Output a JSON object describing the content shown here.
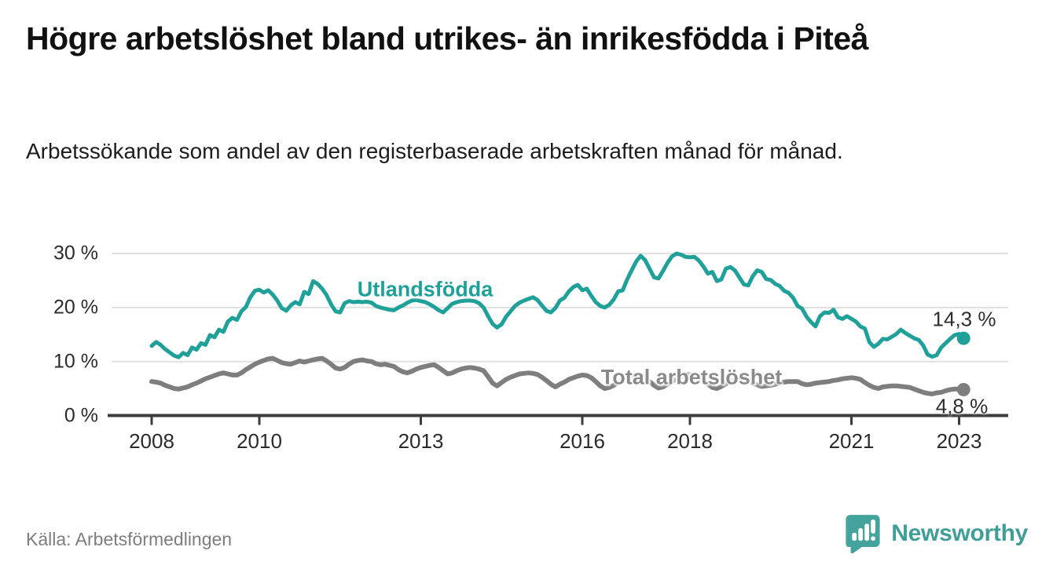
{
  "header": {
    "title": "Högre arbetslöshet bland utrikes- än inrikesfödda i Piteå",
    "subtitle": "Arbetssökande som andel av den registerbaserade arbetskraften månad för månad."
  },
  "chart_data": {
    "type": "line",
    "title": "Högre arbetslöshet bland utrikes- än inrikesfödda i Piteå",
    "subtitle": "Arbetssökande som andel av den registerbaserade arbetskraften månad för månad.",
    "unit": "%",
    "grid": "horizontal",
    "legend": "inline-labels",
    "x_axis": {
      "range_years": [
        2007.3,
        2023.9
      ],
      "ticks": [
        2008,
        2010,
        2013,
        2016,
        2018,
        2021,
        2023
      ],
      "labels": [
        "2008",
        "2010",
        "2013",
        "2016",
        "2018",
        "2021",
        "2023"
      ]
    },
    "y_axis": {
      "range": [
        0,
        30
      ],
      "ticks": [
        0,
        10,
        20,
        30
      ],
      "labels": [
        "0 %",
        "10 %",
        "20 %",
        "30 %"
      ]
    },
    "series": [
      {
        "name": "Utlandsfödda",
        "color": "#1fa098",
        "end_label": "14,3 %",
        "end_value": 14.3,
        "start_year": 2008,
        "step_months": 1,
        "values": [
          12.9,
          13.6,
          13.1,
          12.3,
          11.7,
          11.1,
          10.8,
          11.6,
          11.2,
          12.6,
          12.2,
          13.4,
          13.1,
          14.9,
          14.5,
          15.9,
          15.5,
          17.4,
          18.1,
          17.7,
          19.3,
          20.1,
          21.9,
          23.1,
          23.3,
          22.8,
          23.2,
          22.4,
          21.3,
          19.9,
          19.4,
          20.4,
          21.0,
          20.6,
          22.9,
          22.5,
          24.9,
          24.4,
          23.5,
          22.3,
          20.6,
          19.3,
          19.1,
          20.8,
          21.2,
          21.0,
          21.1,
          21.0,
          21.1,
          20.9,
          20.3,
          20.0,
          19.8,
          19.6,
          19.5,
          20.0,
          20.4,
          20.9,
          21.3,
          21.4,
          21.2,
          21.0,
          20.6,
          20.1,
          19.5,
          19.1,
          19.9,
          20.7,
          21.0,
          21.2,
          21.3,
          21.3,
          21.2,
          20.8,
          20.0,
          18.4,
          17.0,
          16.3,
          16.9,
          18.3,
          19.3,
          20.3,
          20.9,
          21.3,
          21.6,
          21.9,
          21.4,
          20.4,
          19.4,
          19.1,
          19.9,
          21.3,
          21.8,
          23.0,
          23.8,
          24.2,
          23.2,
          23.5,
          22.2,
          21.0,
          20.3,
          20.0,
          20.5,
          21.5,
          23.0,
          23.2,
          25.2,
          26.9,
          28.5,
          29.6,
          28.8,
          27.2,
          25.6,
          25.4,
          26.8,
          28.3,
          29.5,
          30.0,
          29.8,
          29.4,
          29.3,
          29.4,
          28.7,
          27.6,
          26.3,
          26.6,
          24.9,
          25.2,
          27.2,
          27.5,
          26.9,
          25.6,
          24.3,
          24.1,
          25.8,
          26.9,
          26.6,
          25.3,
          25.1,
          24.4,
          24.0,
          23.1,
          22.7,
          21.8,
          20.3,
          19.8,
          18.3,
          17.3,
          16.5,
          18.4,
          19.1,
          19.0,
          19.6,
          18.2,
          17.9,
          18.4,
          17.9,
          17.4,
          16.5,
          16.1,
          13.6,
          12.7,
          13.3,
          14.2,
          14.1,
          14.6,
          15.1,
          15.9,
          15.3,
          14.8,
          14.3,
          14.0,
          13.0,
          11.3,
          10.9,
          11.2,
          12.6,
          13.4,
          14.2,
          14.9,
          15.1,
          14.3
        ]
      },
      {
        "name": "Total arbetslöshet",
        "color": "#7e7e7e",
        "end_label": "4,8 %",
        "end_value": 4.8,
        "start_year": 2008,
        "step_months": 1,
        "values": [
          6.3,
          6.2,
          6.0,
          5.6,
          5.3,
          5.0,
          4.9,
          5.1,
          5.3,
          5.7,
          6.0,
          6.4,
          6.8,
          7.1,
          7.4,
          7.7,
          7.9,
          7.7,
          7.5,
          7.5,
          7.9,
          8.5,
          9.0,
          9.5,
          9.9,
          10.2,
          10.5,
          10.6,
          10.2,
          9.8,
          9.6,
          9.5,
          9.8,
          10.1,
          9.9,
          10.1,
          10.3,
          10.5,
          10.6,
          10.1,
          9.5,
          8.8,
          8.6,
          8.9,
          9.5,
          10.0,
          10.2,
          10.3,
          10.1,
          10.0,
          9.6,
          9.4,
          9.5,
          9.3,
          9.1,
          8.5,
          8.1,
          7.9,
          8.2,
          8.6,
          8.9,
          9.1,
          9.3,
          9.4,
          8.9,
          8.3,
          7.7,
          7.9,
          8.3,
          8.6,
          8.8,
          8.9,
          8.8,
          8.6,
          8.3,
          7.2,
          6.0,
          5.5,
          6.1,
          6.7,
          7.1,
          7.4,
          7.7,
          7.8,
          7.9,
          7.8,
          7.6,
          7.1,
          6.5,
          5.8,
          5.3,
          5.8,
          6.2,
          6.7,
          7.0,
          7.3,
          7.5,
          7.4,
          7.0,
          6.3,
          5.5,
          5.0,
          5.2,
          5.6,
          6.1,
          6.6,
          7.0,
          7.3,
          7.5,
          7.4,
          7.0,
          6.3,
          5.6,
          5.1,
          5.3,
          5.8,
          6.3,
          6.8,
          7.2,
          7.5,
          7.6,
          7.5,
          7.1,
          6.5,
          5.8,
          5.2,
          5.0,
          5.4,
          5.9,
          6.3,
          6.5,
          6.6,
          6.6,
          6.4,
          6.0,
          5.7,
          5.4,
          5.5,
          5.6,
          5.8,
          6.0,
          6.2,
          6.3,
          6.3,
          6.3,
          5.9,
          5.7,
          5.8,
          6.0,
          6.1,
          6.2,
          6.3,
          6.5,
          6.6,
          6.8,
          6.9,
          7.0,
          6.9,
          6.7,
          6.1,
          5.6,
          5.2,
          5.0,
          5.3,
          5.4,
          5.5,
          5.5,
          5.4,
          5.3,
          5.2,
          4.9,
          4.6,
          4.3,
          4.1,
          4.0,
          4.2,
          4.3,
          4.6,
          4.8,
          4.9,
          4.9,
          4.8
        ]
      }
    ]
  },
  "footer": {
    "source": "Källa: Arbetsförmedlingen",
    "logo_text": "Newsworthy"
  },
  "colors": {
    "accent_teal": "#1fa098",
    "logo_teal": "#44a39c",
    "series_gray": "#7e7e7e",
    "gridline": "#e0e0e0",
    "axis": "#3c3c3c",
    "text_dark": "#111111",
    "text_muted": "#7d7d7d"
  }
}
